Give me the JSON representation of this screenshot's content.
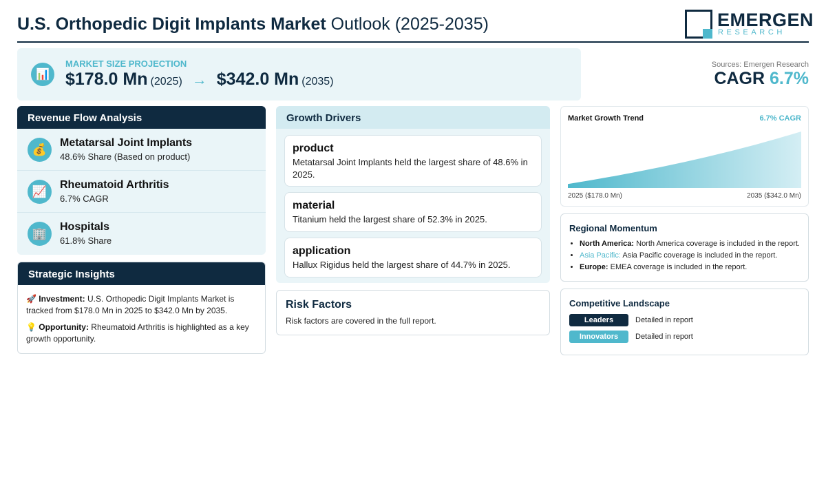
{
  "header": {
    "title_strong": "U.S. Orthopedic Digit Implants Market",
    "title_rest": "Outlook (2025-2035)",
    "logo_name": "EMERGEN",
    "logo_sub": "RESEARCH"
  },
  "projection": {
    "label": "MARKET SIZE PROJECTION",
    "start_value": "$178.0 Mn",
    "start_year": "(2025)",
    "arrow": "→",
    "end_value": "$342.0 Mn",
    "end_year": "(2035)",
    "icon": "chart-icon"
  },
  "sources": "Sources: Emergen Research",
  "cagr": {
    "label": "CAGR",
    "value": "6.7%"
  },
  "revenue": {
    "title": "Revenue Flow Analysis",
    "items": [
      {
        "icon": "money-bag-icon",
        "title": "Metatarsal Joint Implants",
        "sub": "48.6% Share (Based on product)"
      },
      {
        "icon": "trend-up-icon",
        "title": "Rheumatoid Arthritis",
        "sub": "6.7% CAGR"
      },
      {
        "icon": "hospital-icon",
        "title": "Hospitals",
        "sub": "61.8% Share"
      }
    ]
  },
  "insights": {
    "title": "Strategic Insights",
    "investment_label": "Investment:",
    "investment_text": "U.S. Orthopedic Digit Implants Market is tracked from $178.0 Mn in 2025 to $342.0 Mn by 2035.",
    "opportunity_label": "Opportunity:",
    "opportunity_text": "Rheumatoid Arthritis is highlighted as a key growth opportunity."
  },
  "drivers": {
    "title": "Growth Drivers",
    "items": [
      {
        "title": "product",
        "text": "Metatarsal Joint Implants held the largest share of 48.6% in 2025."
      },
      {
        "title": "material",
        "text": "Titanium held the largest share of 52.3% in 2025."
      },
      {
        "title": "application",
        "text": "Hallux Rigidus held the largest share of 44.7% in 2025."
      }
    ]
  },
  "risk": {
    "title": "Risk Factors",
    "text": "Risk factors are covered in the full report."
  },
  "trend": {
    "title": "Market Growth Trend",
    "cagr": "6.7% CAGR",
    "start_label": "2025 ($178.0 Mn)",
    "end_label": "2035 ($342.0 Mn)"
  },
  "chart_data": {
    "type": "area",
    "title": "Market Growth Trend",
    "x": [
      2025,
      2035
    ],
    "values": [
      178.0,
      342.0
    ],
    "unit": "$ Mn",
    "grid": false,
    "legend": "none"
  },
  "regional": {
    "title": "Regional Momentum",
    "items": [
      {
        "name": "North America:",
        "text": "North America coverage is included in the report."
      },
      {
        "name": "Asia Pacific:",
        "text": "Asia Pacific coverage is included in the report."
      },
      {
        "name": "Europe:",
        "text": "EMEA coverage is included in the report."
      }
    ]
  },
  "competitive": {
    "title": "Competitive Landscape",
    "rows": [
      {
        "badge": "Leaders",
        "desc": "Detailed in report",
        "color": "#0f2a40"
      },
      {
        "badge": "Innovators",
        "desc": "Detailed in report",
        "color": "#4fb8cc"
      }
    ]
  },
  "colors": {
    "navy": "#0f2a40",
    "accent": "#4fb8cc",
    "panel": "#eaf5f8"
  }
}
